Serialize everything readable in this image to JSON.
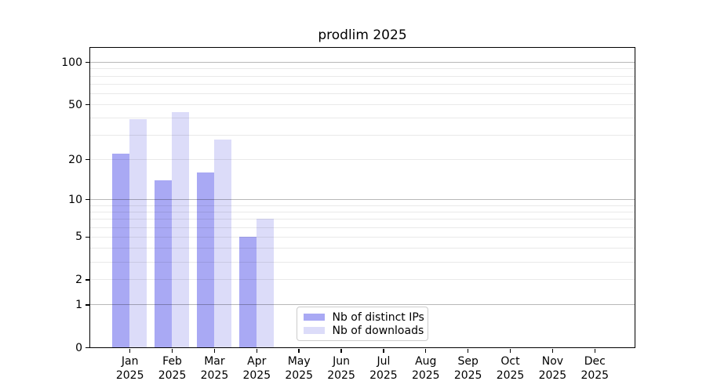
{
  "chart_data": {
    "type": "bar",
    "title": "prodlim 2025",
    "categories": [
      "Jan",
      "Feb",
      "Mar",
      "Apr",
      "May",
      "Jun",
      "Jul",
      "Aug",
      "Sep",
      "Oct",
      "Nov",
      "Dec"
    ],
    "category_year": "2025",
    "series": [
      {
        "name": "Nb of distinct IPs",
        "color": "#a9a9f4",
        "values": [
          22,
          14,
          16,
          5,
          null,
          null,
          null,
          null,
          null,
          null,
          null,
          null
        ]
      },
      {
        "name": "Nb of downloads",
        "color": "#dcdcf9",
        "values": [
          39,
          44,
          28,
          7,
          null,
          null,
          null,
          null,
          null,
          null,
          null,
          null
        ]
      }
    ],
    "y_axis": {
      "scale": "log10(1+x)",
      "tick_labels": [
        100,
        50,
        20,
        10,
        5,
        2,
        1,
        0
      ],
      "major_gridlines": [
        100,
        10,
        1
      ],
      "minor_gridlines": [
        90,
        80,
        70,
        60,
        50,
        40,
        30,
        20,
        9,
        8,
        7,
        6,
        5,
        4,
        3,
        2
      ],
      "ylim": [
        0,
        126
      ]
    },
    "grid": "horizontal major+minor, drawn over bars",
    "legend_position": "inside-bottom-center",
    "grid_major_color": "rgba(0,0,0,0.28)",
    "grid_minor_color": "rgba(0,0,0,0.085)"
  }
}
